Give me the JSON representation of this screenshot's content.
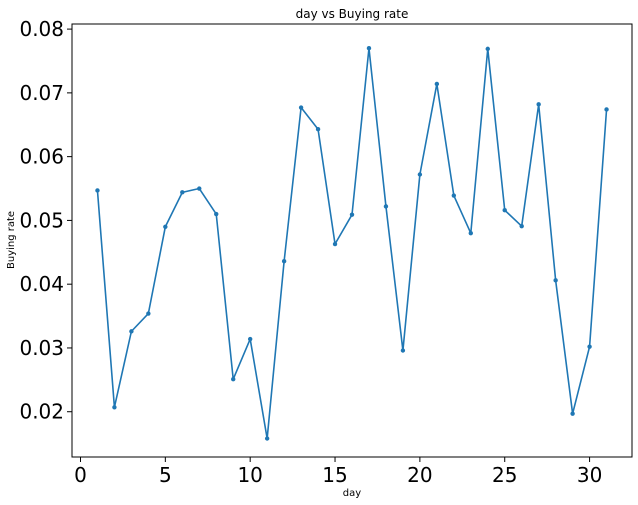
{
  "chart_data": {
    "type": "line",
    "title": "day vs Buying rate",
    "xlabel": "day",
    "ylabel": "Buying rate",
    "xlim": [
      -0.5,
      32.5
    ],
    "ylim": [
      0.0129,
      0.0808
    ],
    "xticks": [
      0,
      5,
      10,
      15,
      20,
      25,
      30
    ],
    "xtick_labels": [
      "0",
      "5",
      "10",
      "15",
      "20",
      "25",
      "30"
    ],
    "yticks": [
      0.02,
      0.03,
      0.04,
      0.05,
      0.06,
      0.07,
      0.08
    ],
    "ytick_labels": [
      "0.02",
      "0.03",
      "0.04",
      "0.05",
      "0.06",
      "0.07",
      "0.08"
    ],
    "grid": false,
    "series": [
      {
        "color": "#1f77b4",
        "marker": "dot",
        "x": [
          1,
          2,
          3,
          4,
          5,
          6,
          7,
          8,
          9,
          10,
          11,
          12,
          13,
          14,
          15,
          16,
          17,
          18,
          19,
          20,
          21,
          22,
          23,
          24,
          25,
          26,
          27,
          28,
          29,
          30,
          31
        ],
        "y": [
          0.0547,
          0.0207,
          0.0326,
          0.0354,
          0.049,
          0.0544,
          0.055,
          0.051,
          0.0251,
          0.0314,
          0.0158,
          0.0436,
          0.0677,
          0.0643,
          0.0463,
          0.0509,
          0.077,
          0.0522,
          0.0296,
          0.0572,
          0.0714,
          0.0539,
          0.048,
          0.0769,
          0.0516,
          0.0491,
          0.0682,
          0.0406,
          0.0197,
          0.0302,
          0.0674
        ]
      }
    ]
  }
}
